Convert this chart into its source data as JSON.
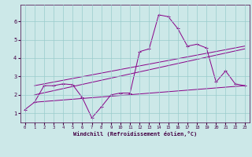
{
  "bg_color": "#cce8e8",
  "grid_color": "#99cccc",
  "line_color": "#880088",
  "text_color": "#440044",
  "x_ticks": [
    0,
    1,
    2,
    3,
    4,
    5,
    6,
    7,
    8,
    9,
    10,
    11,
    12,
    13,
    14,
    15,
    16,
    17,
    18,
    19,
    20,
    21,
    22,
    23
  ],
  "y_ticks": [
    1,
    2,
    3,
    4,
    5,
    6
  ],
  "ylim": [
    0.5,
    6.9
  ],
  "xlim": [
    -0.5,
    23.5
  ],
  "xlabel": "Windchill (Refroidissement éolien,°C)",
  "series1_x": [
    0,
    1,
    2,
    3,
    4,
    5,
    6,
    7,
    8,
    9,
    10,
    11,
    12,
    13,
    14,
    15,
    16,
    17,
    18,
    19,
    20,
    21,
    22,
    23
  ],
  "series1_y": [
    1.2,
    1.6,
    2.5,
    2.5,
    2.6,
    2.55,
    1.85,
    0.75,
    1.35,
    2.0,
    2.1,
    2.1,
    4.35,
    4.5,
    6.35,
    6.25,
    5.6,
    4.65,
    4.75,
    4.55,
    2.7,
    3.3,
    2.6,
    2.5
  ],
  "series2_x": [
    1,
    23
  ],
  "series2_y": [
    1.6,
    2.5
  ],
  "series3_x": [
    1,
    23
  ],
  "series3_y": [
    2.5,
    4.65
  ],
  "series4_x": [
    1,
    23
  ],
  "series4_y": [
    2.0,
    4.5
  ]
}
